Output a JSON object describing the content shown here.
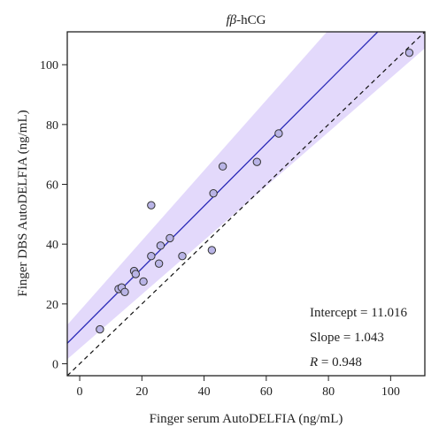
{
  "chart_data": {
    "type": "scatter",
    "title_prefix": "f",
    "title_beta": "β",
    "title_suffix": "-hCG",
    "xlabel": "Finger serum AutoDELFIA (ng/mL)",
    "ylabel": "Finger DBS AutoDELFIA (ng/mL)",
    "xlim": [
      -4,
      111
    ],
    "ylim": [
      -4,
      111
    ],
    "xticks": [
      0,
      20,
      40,
      60,
      80,
      100
    ],
    "yticks": [
      0,
      20,
      40,
      60,
      80,
      100
    ],
    "regression": {
      "intercept": 11.016,
      "slope": 1.043
    },
    "identity_line": true,
    "ci_band": {
      "x_low": -4,
      "lower_at_low": 1.5,
      "upper_at_low": 13.0,
      "x_high": 111,
      "lower_at_high": 105.5,
      "upper_at_high": 148.0
    },
    "stats": {
      "intercept_text": "Intercept = 11.016",
      "slope_text": "Slope = 1.043",
      "r_label": "R",
      "r_value_text": " = 0.948"
    },
    "colors": {
      "band": "#e3d9fb",
      "regression": "#2a2ab8",
      "point_fill": "#b9b4e6",
      "point_stroke": "#333333",
      "identity": "#111111"
    },
    "points": [
      {
        "x": 6.5,
        "y": 11.5
      },
      {
        "x": 12.5,
        "y": 25.0
      },
      {
        "x": 13.5,
        "y": 25.5
      },
      {
        "x": 14.5,
        "y": 24.0
      },
      {
        "x": 17.5,
        "y": 31.0
      },
      {
        "x": 18.0,
        "y": 30.0
      },
      {
        "x": 20.5,
        "y": 27.5
      },
      {
        "x": 23.0,
        "y": 36.0
      },
      {
        "x": 23.0,
        "y": 53.0
      },
      {
        "x": 25.5,
        "y": 33.5
      },
      {
        "x": 26.0,
        "y": 39.5
      },
      {
        "x": 29.0,
        "y": 42.0
      },
      {
        "x": 33.0,
        "y": 36.0
      },
      {
        "x": 42.5,
        "y": 38.0
      },
      {
        "x": 43.0,
        "y": 57.0
      },
      {
        "x": 46.0,
        "y": 66.0
      },
      {
        "x": 57.0,
        "y": 67.5
      },
      {
        "x": 64.0,
        "y": 77.0
      },
      {
        "x": 106.0,
        "y": 104.0
      }
    ]
  }
}
